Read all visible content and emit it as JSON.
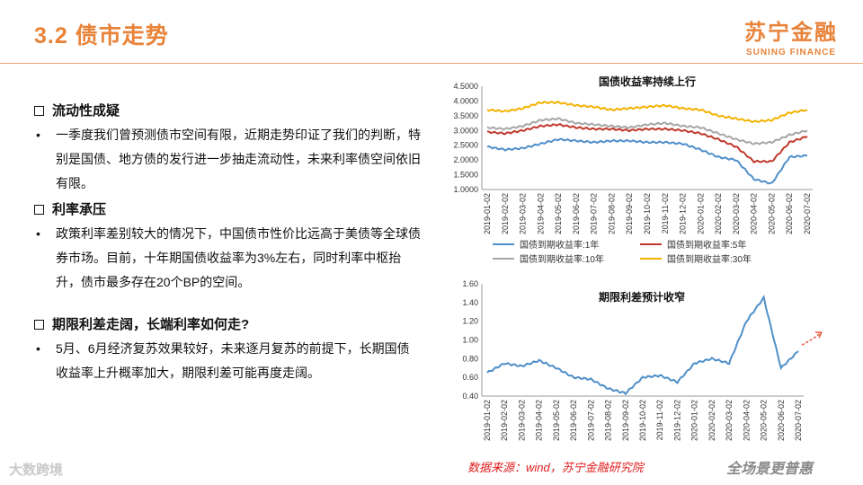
{
  "header": {
    "title": "3.2 债市走势"
  },
  "logo": {
    "cn": "苏宁金融",
    "en": "SUNING FINANCE"
  },
  "sections": [
    {
      "heading": "流动性成疑",
      "bullets": [
        "一季度我们曾预测债市空间有限，近期走势印证了我们的判断，特别是国债、地方债的发行进一步抽走流动性，未来利率债空间依旧有限。"
      ]
    },
    {
      "heading": "利率承压",
      "bullets": [
        "政策利率差别较大的情况下，中国债市性价比远高于美债等全球债券市场。目前，十年期国债收益率为3%左右，同时利率中枢抬升，债市最多存在20个BP的空间。"
      ]
    },
    {
      "heading": "期限利差走阔，长端利率如何走?",
      "bullets": [
        "5月、6月经济复苏效果较好，未来逐月复苏的前提下，长期国债收益率上升概率加大，期限利差可能再度走阔。"
      ]
    }
  ],
  "source": "数据来源：wind，苏宁金融研究院",
  "watermark": "大数跨境",
  "brand2": "全场景更普惠",
  "colors": {
    "accent": "#e8833a",
    "s1": "#4f8fc9",
    "s5": "#c0392b",
    "s10": "#a6a6a6",
    "s30": "#f2b200",
    "spread": "#4f8fc9",
    "arrow": "#e8553a"
  },
  "chart_data": [
    {
      "type": "line",
      "title": "国债收益率持续上行",
      "ylim": [
        1.0,
        4.5
      ],
      "yticks": [
        "1.0000",
        "1.5000",
        "2.0000",
        "2.5000",
        "3.0000",
        "3.5000",
        "4.0000",
        "4.5000"
      ],
      "x_dates": [
        "2019-01-02",
        "2019-02-02",
        "2019-03-02",
        "2019-04-02",
        "2019-05-02",
        "2019-06-02",
        "2019-07-02",
        "2019-08-02",
        "2019-09-02",
        "2019-10-02",
        "2019-11-02",
        "2019-12-02",
        "2020-01-02",
        "2020-02-02",
        "2020-03-02",
        "2020-04-02",
        "2020-05-02",
        "2020-06-02",
        "2020-07-02"
      ],
      "series": [
        {
          "name": "国债到期收益率:1年",
          "color": "#4f8fc9",
          "values": [
            2.45,
            2.35,
            2.4,
            2.55,
            2.7,
            2.65,
            2.6,
            2.65,
            2.65,
            2.6,
            2.6,
            2.55,
            2.35,
            2.1,
            2.0,
            1.35,
            1.2,
            2.1,
            2.15
          ]
        },
        {
          "name": "国债到期收益率:5年",
          "color": "#c0392b",
          "values": [
            2.95,
            2.9,
            3.0,
            3.15,
            3.2,
            3.1,
            3.05,
            3.05,
            3.0,
            3.05,
            3.05,
            3.0,
            2.9,
            2.7,
            2.45,
            1.95,
            1.95,
            2.6,
            2.8
          ]
        },
        {
          "name": "国债到期收益率:10年",
          "color": "#a6a6a6",
          "values": [
            3.1,
            3.05,
            3.15,
            3.35,
            3.4,
            3.25,
            3.2,
            3.15,
            3.1,
            3.2,
            3.25,
            3.15,
            3.1,
            2.9,
            2.7,
            2.55,
            2.6,
            2.85,
            3.0
          ]
        },
        {
          "name": "国债到期收益率:30年",
          "color": "#f2b200",
          "values": [
            3.7,
            3.65,
            3.75,
            3.95,
            3.95,
            3.85,
            3.8,
            3.7,
            3.75,
            3.8,
            3.85,
            3.75,
            3.7,
            3.5,
            3.4,
            3.3,
            3.35,
            3.6,
            3.7
          ]
        }
      ]
    },
    {
      "type": "line",
      "title": "期限利差预计收窄",
      "ylim": [
        0.4,
        1.6
      ],
      "yticks": [
        "0.40",
        "0.60",
        "0.80",
        "1.00",
        "1.20",
        "1.40",
        "1.60"
      ],
      "x_dates": [
        "2019-01-02",
        "2019-02-02",
        "2019-03-02",
        "2019-04-02",
        "2019-05-02",
        "2019-06-02",
        "2019-07-02",
        "2019-08-02",
        "2019-09-02",
        "2019-10-02",
        "2019-11-02",
        "2019-12-02",
        "2020-01-02",
        "2020-02-02",
        "2020-03-02",
        "2020-04-02",
        "2020-05-02",
        "2020-06-02",
        "2020-07-02"
      ],
      "series": [
        {
          "name": "",
          "color": "#4f8fc9",
          "values": [
            0.65,
            0.75,
            0.72,
            0.78,
            0.7,
            0.6,
            0.58,
            0.48,
            0.43,
            0.6,
            0.62,
            0.55,
            0.75,
            0.8,
            0.75,
            1.2,
            1.45,
            0.7,
            0.88
          ]
        }
      ]
    }
  ]
}
